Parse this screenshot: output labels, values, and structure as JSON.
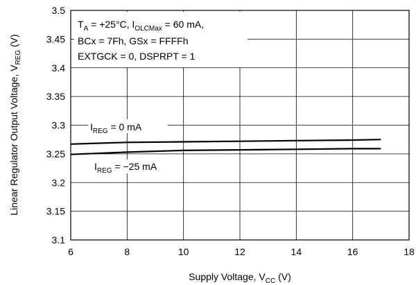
{
  "chart_data": {
    "type": "line",
    "xlabel": {
      "main": "Supply Voltage, V",
      "sub": "CC",
      "unit": " (V)"
    },
    "ylabel": {
      "main": "Linear Regulator Output Voltage, V",
      "sub": "REG",
      "unit": " (V)"
    },
    "xlim": [
      6,
      18
    ],
    "ylim": [
      3.1,
      3.5
    ],
    "xticks": [
      "6",
      "8",
      "10",
      "12",
      "14",
      "16",
      "18"
    ],
    "yticks": [
      "3.1",
      "3.15",
      "3.2",
      "3.25",
      "3.3",
      "3.35",
      "3.4",
      "3.45",
      "3.5"
    ],
    "grid": true,
    "conditions": {
      "line1": {
        "t": "T",
        "t_sub": "A",
        "t_val": " = +25°C, I",
        "i_sub": "OLCMax",
        "i_val": " = 60 mA,"
      },
      "line2": "BCx = 7Fh, GSx = FFFFh",
      "line3": "EXTGCK = 0, DSPRPT = 1"
    },
    "series": [
      {
        "label": {
          "main": "I",
          "sub": "REG",
          "val": " = 0 mA"
        },
        "x": [
          6,
          8,
          10,
          12,
          14,
          16,
          17
        ],
        "y": [
          3.267,
          3.27,
          3.271,
          3.272,
          3.273,
          3.274,
          3.275
        ]
      },
      {
        "label": {
          "main": "I",
          "sub": "REG",
          "val": " = −25 mA"
        },
        "x": [
          6,
          8,
          10,
          12,
          14,
          16,
          17
        ],
        "y": [
          3.249,
          3.253,
          3.256,
          3.257,
          3.258,
          3.259,
          3.259
        ]
      }
    ]
  }
}
